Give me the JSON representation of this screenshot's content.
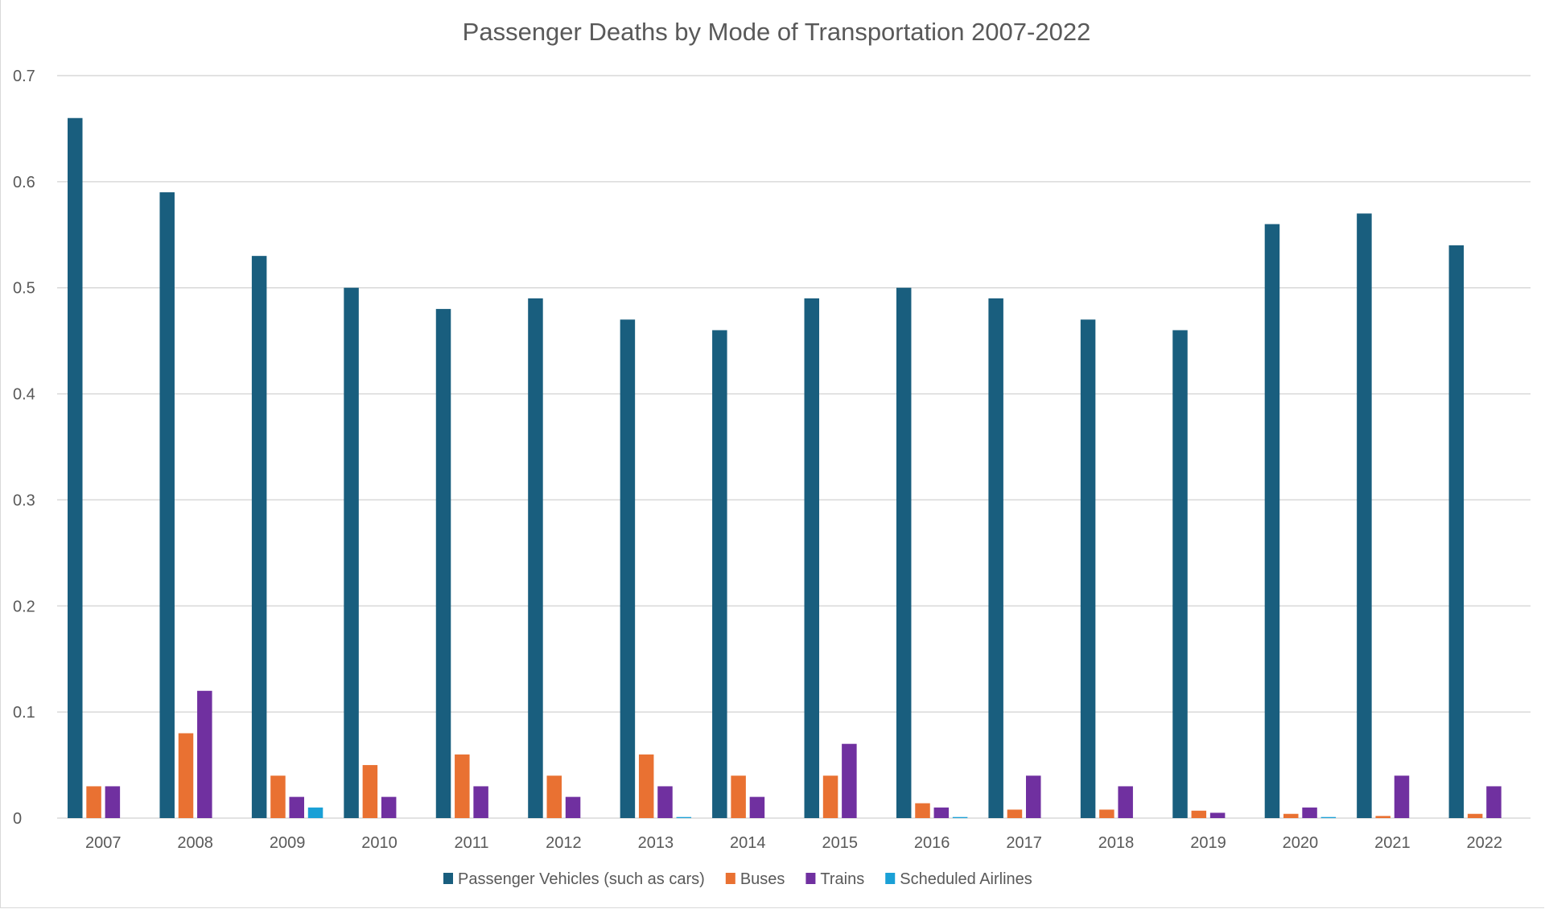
{
  "chart_data": {
    "type": "bar",
    "title": "Passenger Deaths by Mode of Transportation 2007-2022",
    "xlabel": "",
    "ylabel": "",
    "ylim": [
      0,
      0.7
    ],
    "yticks": [
      "0",
      "0.1",
      "0.2",
      "0.3",
      "0.4",
      "0.5",
      "0.6",
      "0.7"
    ],
    "grid": true,
    "legend": "bottom",
    "categories": [
      "2007",
      "2008",
      "2009",
      "2010",
      "2011",
      "2012",
      "2013",
      "2014",
      "2015",
      "2016",
      "2017",
      "2018",
      "2019",
      "2020",
      "2021",
      "2022"
    ],
    "series": [
      {
        "name": "Passenger Vehicles (such as cars)",
        "color": "#195e7e",
        "values": [
          0.66,
          0.59,
          0.53,
          0.5,
          0.48,
          0.49,
          0.47,
          0.46,
          0.49,
          0.5,
          0.49,
          0.47,
          0.46,
          0.56,
          0.57,
          0.54
        ]
      },
      {
        "name": "Buses",
        "color": "#e97132",
        "values": [
          0.03,
          0.08,
          0.04,
          0.05,
          0.06,
          0.04,
          0.06,
          0.04,
          0.04,
          0.014,
          0.008,
          0.008,
          0.007,
          0.004,
          0.002,
          0.004
        ]
      },
      {
        "name": "Trains",
        "color": "#7030a0",
        "values": [
          0.03,
          0.12,
          0.02,
          0.02,
          0.03,
          0.02,
          0.03,
          0.02,
          0.07,
          0.01,
          0.04,
          0.03,
          0.005,
          0.01,
          0.04,
          0.03
        ]
      },
      {
        "name": "Scheduled Airlines",
        "color": "#1aa0d6",
        "values": [
          0,
          0,
          0.01,
          0,
          0,
          0,
          0.001,
          0,
          0,
          0.001,
          0,
          0,
          0,
          0.001,
          0,
          0
        ]
      }
    ]
  }
}
